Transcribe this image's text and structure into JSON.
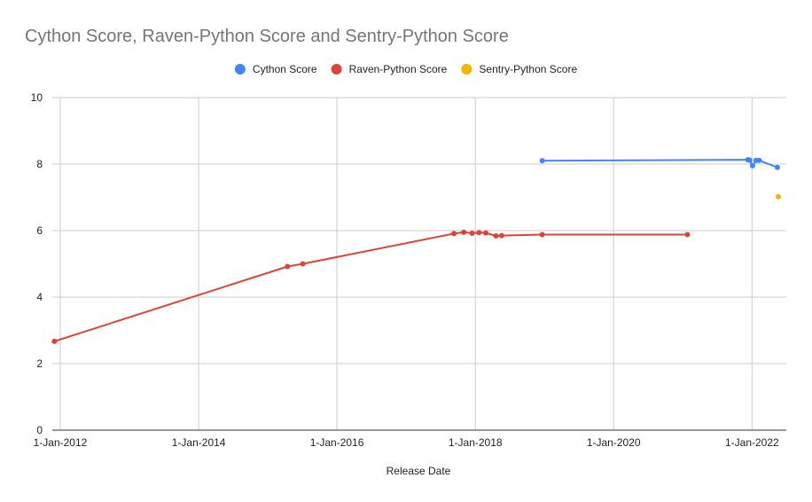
{
  "chart_data": {
    "type": "line",
    "title": "Cython Score, Raven-Python Score and Sentry-Python Score",
    "xlabel": "Release Date",
    "ylabel": "",
    "xlim": [
      "2011-11-20",
      "2022-07-01"
    ],
    "ylim": [
      0,
      10
    ],
    "yticks": [
      0,
      2,
      4,
      6,
      8,
      10
    ],
    "xticks": [
      {
        "date": "2012-01-01",
        "label": "1-Jan-2012"
      },
      {
        "date": "2014-01-01",
        "label": "1-Jan-2014"
      },
      {
        "date": "2016-01-01",
        "label": "1-Jan-2016"
      },
      {
        "date": "2018-01-01",
        "label": "1-Jan-2018"
      },
      {
        "date": "2020-01-01",
        "label": "1-Jan-2020"
      },
      {
        "date": "2022-01-01",
        "label": "1-Jan-2022"
      }
    ],
    "grid": true,
    "legend_position": "top",
    "series": [
      {
        "name": "Cython Score",
        "color": "#4285f4",
        "points": [
          {
            "x": "2018-12-20",
            "y": 8.1
          },
          {
            "x": "2021-12-10",
            "y": 8.13
          },
          {
            "x": "2021-12-20",
            "y": 8.12
          },
          {
            "x": "2022-01-04",
            "y": 7.95
          },
          {
            "x": "2022-01-22",
            "y": 8.11
          },
          {
            "x": "2022-02-08",
            "y": 8.11
          },
          {
            "x": "2022-05-15",
            "y": 7.9
          }
        ]
      },
      {
        "name": "Raven-Python Score",
        "color": "#db4437",
        "points": [
          {
            "x": "2011-12-01",
            "y": 2.67
          },
          {
            "x": "2015-04-15",
            "y": 4.92
          },
          {
            "x": "2015-07-05",
            "y": 5.0
          },
          {
            "x": "2017-09-10",
            "y": 5.91
          },
          {
            "x": "2017-11-01",
            "y": 5.95
          },
          {
            "x": "2017-12-15",
            "y": 5.92
          },
          {
            "x": "2018-01-20",
            "y": 5.94
          },
          {
            "x": "2018-02-25",
            "y": 5.93
          },
          {
            "x": "2018-04-20",
            "y": 5.84
          },
          {
            "x": "2018-05-20",
            "y": 5.85
          },
          {
            "x": "2018-12-20",
            "y": 5.88
          },
          {
            "x": "2021-01-25",
            "y": 5.88
          }
        ]
      },
      {
        "name": "Sentry-Python Score",
        "color": "#f4b400",
        "points": [
          {
            "x": "2022-05-20",
            "y": 7.02
          }
        ]
      }
    ]
  }
}
